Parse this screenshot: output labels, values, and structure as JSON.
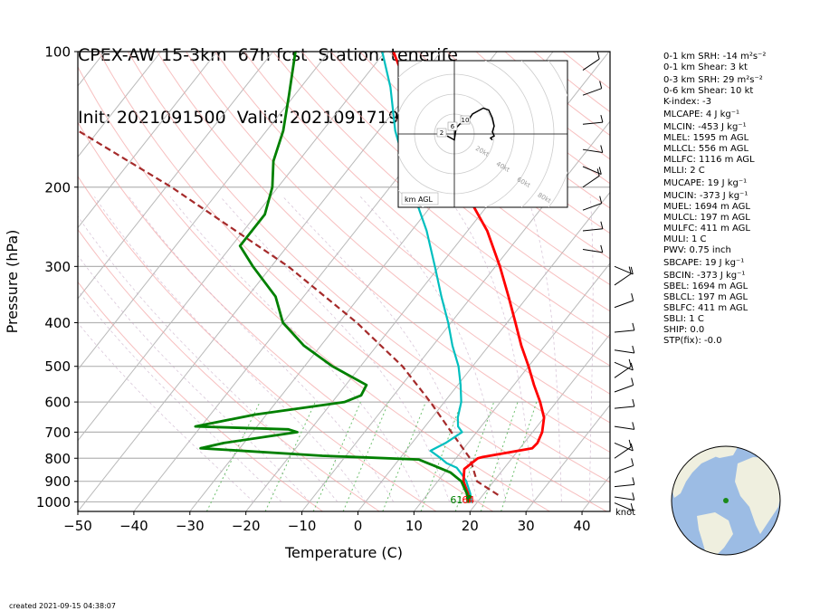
{
  "title": {
    "line1": "CPEX-AW 15-3km  67h fcst  Station: tenerife",
    "line2": "Init: 2021091500  Valid: 202109171900 UTC"
  },
  "chart_data": {
    "type": "skew-t",
    "xlabel": "Temperature (C)",
    "ylabel": "Pressure (hPa)",
    "xlim": [
      -50,
      45
    ],
    "ylim": [
      1050,
      100
    ],
    "x_ticks": [
      -50,
      -40,
      -30,
      -20,
      -10,
      0,
      10,
      20,
      30,
      40
    ],
    "x_tick_labels": [
      "−50",
      "−40",
      "−30",
      "−20",
      "−10",
      "0",
      "10",
      "20",
      "30",
      "40"
    ],
    "y_ticks": [
      100,
      200,
      300,
      400,
      500,
      600,
      700,
      800,
      900,
      1000
    ],
    "y_tick_labels": [
      "100",
      "200",
      "300",
      "400",
      "500",
      "600",
      "700",
      "800",
      "900",
      "1000"
    ],
    "series": [
      {
        "role": "temperature",
        "color": "#ff0000",
        "points": [
          [
            1005,
            18.7
          ],
          [
            960,
            17.2
          ],
          [
            900,
            14.6
          ],
          [
            845,
            13.0
          ],
          [
            800,
            13.9
          ],
          [
            795,
            14.6
          ],
          [
            760,
            22.2
          ],
          [
            740,
            22.4
          ],
          [
            700,
            21.7
          ],
          [
            650,
            20.0
          ],
          [
            600,
            17.1
          ],
          [
            550,
            13.6
          ],
          [
            500,
            10.0
          ],
          [
            450,
            5.8
          ],
          [
            400,
            1.5
          ],
          [
            350,
            -3.4
          ],
          [
            300,
            -9.2
          ],
          [
            250,
            -16.5
          ],
          [
            200,
            -27.0
          ],
          [
            170,
            -35.0
          ],
          [
            150,
            -40.5
          ],
          [
            120,
            -51.0
          ],
          [
            100,
            -58.5
          ]
        ]
      },
      {
        "role": "virtual-temperature",
        "color": "#00bfbf",
        "points": [
          [
            1005,
            19.0
          ],
          [
            960,
            17.6
          ],
          [
            900,
            15.1
          ],
          [
            870,
            13.4
          ],
          [
            840,
            11.5
          ],
          [
            820,
            9.0
          ],
          [
            800,
            7.3
          ],
          [
            770,
            4.4
          ],
          [
            740,
            6.0
          ],
          [
            700,
            7.4
          ],
          [
            680,
            5.9
          ],
          [
            650,
            4.6
          ],
          [
            600,
            3.0
          ],
          [
            550,
            0.5
          ],
          [
            500,
            -2.5
          ],
          [
            450,
            -6.5
          ],
          [
            400,
            -10.5
          ],
          [
            350,
            -15.4
          ],
          [
            300,
            -20.8
          ],
          [
            250,
            -27.3
          ],
          [
            200,
            -36.2
          ],
          [
            150,
            -47.0
          ],
          [
            120,
            -54.0
          ],
          [
            100,
            -60.5
          ]
        ]
      },
      {
        "role": "dewpoint",
        "color": "#008000",
        "points": [
          [
            1005,
            18.4
          ],
          [
            960,
            17.0
          ],
          [
            900,
            14.2
          ],
          [
            860,
            11.0
          ],
          [
            830,
            7.0
          ],
          [
            805,
            3.5
          ],
          [
            790,
            -14.2
          ],
          [
            760,
            -37.0
          ],
          [
            740,
            -33.6
          ],
          [
            700,
            -22.0
          ],
          [
            690,
            -24.0
          ],
          [
            680,
            -41.0
          ],
          [
            640,
            -32.0
          ],
          [
            600,
            -17.8
          ],
          [
            580,
            -15.8
          ],
          [
            550,
            -16.3
          ],
          [
            500,
            -25.0
          ],
          [
            450,
            -33.0
          ],
          [
            400,
            -40.0
          ],
          [
            350,
            -45.0
          ],
          [
            300,
            -53.3
          ],
          [
            270,
            -58.5
          ],
          [
            230,
            -58.5
          ],
          [
            200,
            -61.0
          ],
          [
            175,
            -64.5
          ],
          [
            150,
            -67.0
          ],
          [
            125,
            -71.0
          ],
          [
            100,
            -76.0
          ]
        ]
      },
      {
        "role": "parcel",
        "color": "#a52a2a",
        "points": [
          [
            965,
            22.7
          ],
          [
            900,
            17.0
          ],
          [
            800,
            12.5
          ],
          [
            700,
            5.5
          ],
          [
            600,
            -2.5
          ],
          [
            500,
            -12.5
          ],
          [
            400,
            -26.8
          ],
          [
            300,
            -47.0
          ],
          [
            200,
            -79.0
          ],
          [
            105,
            -134.0
          ]
        ]
      }
    ],
    "surface_labels": [
      {
        "text": "61",
        "color": "#008000",
        "temperature": 17.6
      },
      {
        "text": "64",
        "color": "#ff0000",
        "temperature": 19.7
      }
    ],
    "wind_units": "knot",
    "wind_barbs": [
      [
        110,
        5,
        5
      ],
      [
        125,
        5,
        5
      ],
      [
        145,
        5,
        5
      ],
      [
        165,
        5,
        5
      ],
      [
        180,
        5,
        5
      ],
      [
        200,
        5,
        5
      ],
      [
        225,
        5,
        5
      ],
      [
        250,
        5,
        5
      ],
      [
        275,
        5,
        5
      ],
      [
        300,
        5,
        5
      ],
      [
        330,
        5,
        5
      ],
      [
        370,
        5,
        5
      ],
      [
        420,
        5,
        5
      ],
      [
        460,
        5,
        5
      ],
      [
        490,
        5,
        5
      ],
      [
        530,
        5,
        5
      ],
      [
        570,
        5,
        5
      ],
      [
        620,
        5,
        5
      ],
      [
        680,
        5,
        5
      ],
      [
        740,
        5,
        5
      ],
      [
        800,
        5,
        5
      ],
      [
        860,
        5,
        5
      ],
      [
        925,
        5,
        5
      ],
      [
        975,
        5,
        5
      ],
      [
        1005,
        5,
        5
      ]
    ],
    "hodograph": {
      "label": "km AGL",
      "ring_labels": [
        "20kt",
        "40kt",
        "60kt",
        "80kt"
      ],
      "height_labels": [
        "2",
        "6",
        "10"
      ],
      "trace": [
        [
          -4,
          -1
        ],
        [
          -2,
          -2
        ],
        [
          0,
          -3
        ],
        [
          1,
          3
        ],
        [
          3,
          5
        ],
        [
          7,
          6
        ],
        [
          10,
          10
        ],
        [
          16,
          13
        ],
        [
          19,
          12
        ],
        [
          21,
          8
        ],
        [
          22,
          4
        ],
        [
          21,
          1
        ],
        [
          22,
          -1
        ],
        [
          20,
          -2
        ],
        [
          21,
          -3
        ]
      ]
    }
  },
  "parameters": [
    "0-1 km SRH: -14 m²s⁻²",
    "0-1 km Shear: 3 kt",
    "0-3 km SRH: 29 m²s⁻²",
    "0-6 km Shear: 10 kt",
    "K-index: -3",
    "MLCAPE: 4 J kg⁻¹",
    "MLCIN: -453 J kg⁻¹",
    "MLEL: 1595 m AGL",
    "MLLCL: 556 m AGL",
    "MLLFC: 1116 m AGL",
    "MLLI: 2 C",
    "MUCAPE: 19 J kg⁻¹",
    "MUCIN: -373 J kg⁻¹",
    "MUEL: 1694 m AGL",
    "MULCL: 197 m AGL",
    "MULFC: 411 m AGL",
    "MULI: 1 C",
    "PWV: 0.75 inch",
    "SBCAPE: 19 J kg⁻¹",
    "SBCIN: -373 J kg⁻¹",
    "SBEL: 1694 m AGL",
    "SBLCL: 197 m AGL",
    "SBLFC: 411 m AGL",
    "SBLI: 1 C",
    "SHIP: 0.0",
    "STP(fix): -0.0"
  ],
  "created": "created 2021-09-15 04:38:07",
  "globe": {
    "ocean_color": "#9cbce4",
    "land_color": "#efefdf",
    "station_color": "#1a8a1a"
  }
}
